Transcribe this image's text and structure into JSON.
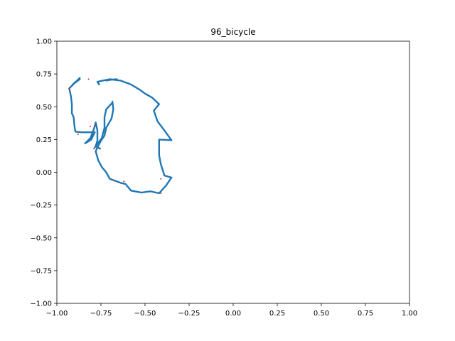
{
  "chart_data": {
    "type": "line",
    "title": "96_bicycle",
    "xlabel": "",
    "ylabel": "",
    "xlim": [
      -1.0,
      1.0
    ],
    "ylim": [
      -1.0,
      1.0
    ],
    "grid": false,
    "x_ticks": [
      "−1.00",
      "−0.75",
      "−0.50",
      "−0.25",
      "0.00",
      "0.25",
      "0.50",
      "0.75",
      "1.00"
    ],
    "x_tick_values": [
      -1.0,
      -0.75,
      -0.5,
      -0.25,
      0.0,
      0.25,
      0.5,
      0.75,
      1.0
    ],
    "y_ticks": [
      "−1.00",
      "−0.75",
      "−0.50",
      "−0.25",
      "0.00",
      "0.25",
      "0.50",
      "0.75",
      "1.00"
    ],
    "y_tick_values": [
      -1.0,
      -0.75,
      -0.5,
      -0.25,
      0.0,
      0.25,
      0.5,
      0.75,
      1.0
    ],
    "series": [
      {
        "color": "#1f77b4",
        "strokes": [
          [
            [
              -0.87,
              0.71
            ],
            [
              -0.9,
              0.68
            ],
            [
              -0.93,
              0.64
            ],
            [
              -0.92,
              0.58
            ],
            [
              -0.915,
              0.52
            ],
            [
              -0.915,
              0.45
            ],
            [
              -0.905,
              0.42
            ],
            [
              -0.9,
              0.35
            ],
            [
              -0.895,
              0.31
            ],
            [
              -0.86,
              0.305
            ],
            [
              -0.82,
              0.305
            ],
            [
              -0.785,
              0.305
            ]
          ],
          [
            [
              -0.87,
              0.72
            ],
            [
              -0.885,
              0.7
            ],
            [
              -0.91,
              0.67
            ]
          ],
          [
            [
              -0.785,
              0.305
            ],
            [
              -0.805,
              0.25
            ],
            [
              -0.84,
              0.22
            ],
            [
              -0.81,
              0.26
            ],
            [
              -0.79,
              0.33
            ],
            [
              -0.78,
              0.38
            ],
            [
              -0.77,
              0.32
            ],
            [
              -0.77,
              0.24
            ],
            [
              -0.78,
              0.2
            ],
            [
              -0.755,
              0.18
            ]
          ],
          [
            [
              -0.785,
              0.19
            ],
            [
              -0.745,
              0.26
            ],
            [
              -0.73,
              0.34
            ],
            [
              -0.73,
              0.42
            ],
            [
              -0.72,
              0.48
            ],
            [
              -0.7,
              0.51
            ],
            [
              -0.685,
              0.53
            ]
          ],
          [
            [
              -0.685,
              0.54
            ],
            [
              -0.68,
              0.48
            ],
            [
              -0.69,
              0.41
            ],
            [
              -0.72,
              0.34
            ],
            [
              -0.73,
              0.28
            ],
            [
              -0.75,
              0.24
            ],
            [
              -0.77,
              0.19
            ],
            [
              -0.78,
              0.16
            ],
            [
              -0.765,
              0.09
            ],
            [
              -0.745,
              0.04
            ],
            [
              -0.72,
              0.0
            ],
            [
              -0.7,
              -0.05
            ],
            [
              -0.66,
              -0.07
            ],
            [
              -0.64,
              -0.08
            ],
            [
              -0.61,
              -0.09
            ],
            [
              -0.58,
              -0.14
            ],
            [
              -0.52,
              -0.155
            ],
            [
              -0.47,
              -0.145
            ],
            [
              -0.42,
              -0.16
            ],
            [
              -0.38,
              -0.1
            ],
            [
              -0.35,
              -0.04
            ],
            [
              -0.39,
              -0.025
            ],
            [
              -0.41,
              0.06
            ],
            [
              -0.42,
              0.13
            ],
            [
              -0.42,
              0.25
            ],
            [
              -0.35,
              0.245
            ]
          ],
          [
            [
              -0.35,
              0.245
            ],
            [
              -0.385,
              0.31
            ],
            [
              -0.43,
              0.39
            ],
            [
              -0.45,
              0.47
            ],
            [
              -0.42,
              0.52
            ],
            [
              -0.46,
              0.57
            ],
            [
              -0.5,
              0.6
            ],
            [
              -0.53,
              0.63
            ],
            [
              -0.58,
              0.67
            ],
            [
              -0.64,
              0.7
            ],
            [
              -0.7,
              0.71
            ],
            [
              -0.74,
              0.7
            ],
            [
              -0.77,
              0.69
            ],
            [
              -0.76,
              0.67
            ]
          ],
          [
            [
              -0.66,
              0.71
            ],
            [
              -0.7,
              0.705
            ],
            [
              -0.72,
              0.7
            ]
          ]
        ]
      }
    ],
    "markers": {
      "color": "#d62728",
      "points": [
        [
          -0.93,
          0.64
        ],
        [
          -0.82,
          0.71
        ],
        [
          -0.88,
          0.29
        ],
        [
          -0.81,
          0.35
        ],
        [
          -0.68,
          -0.06
        ],
        [
          -0.41,
          -0.05
        ],
        [
          -0.41,
          -0.16
        ],
        [
          -0.62,
          -0.07
        ],
        [
          -0.79,
          0.18
        ],
        [
          -0.78,
          0.36
        ]
      ]
    }
  }
}
